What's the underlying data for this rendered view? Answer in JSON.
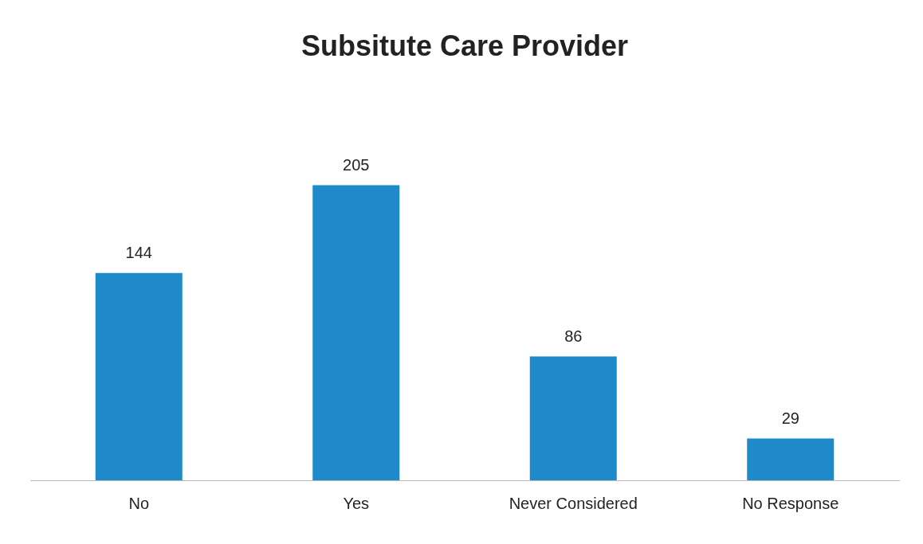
{
  "chart_data": {
    "type": "bar",
    "title": "Subsitute Care Provider",
    "categories": [
      "No",
      "Yes",
      "Never Considered",
      "No Response"
    ],
    "values": [
      144,
      205,
      86,
      29
    ],
    "color": "#1f8ac9",
    "data_labels": true,
    "grid": false,
    "legend": false
  }
}
